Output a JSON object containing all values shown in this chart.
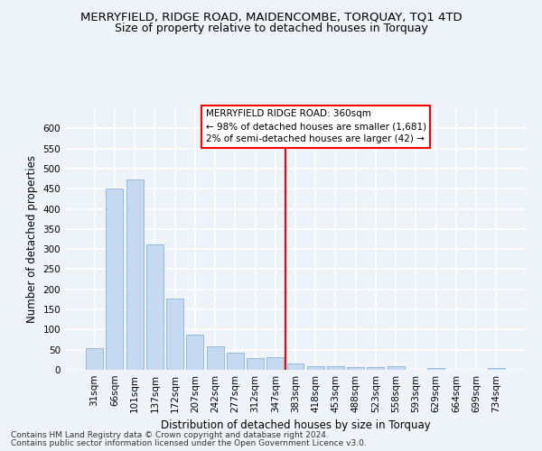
{
  "title": "MERRYFIELD, RIDGE ROAD, MAIDENCOMBE, TORQUAY, TQ1 4TD",
  "subtitle": "Size of property relative to detached houses in Torquay",
  "xlabel": "Distribution of detached houses by size in Torquay",
  "ylabel": "Number of detached properties",
  "footnote1": "Contains HM Land Registry data © Crown copyright and database right 2024.",
  "footnote2": "Contains public sector information licensed under the Open Government Licence v3.0.",
  "bin_labels": [
    "31sqm",
    "66sqm",
    "101sqm",
    "137sqm",
    "172sqm",
    "207sqm",
    "242sqm",
    "277sqm",
    "312sqm",
    "347sqm",
    "383sqm",
    "418sqm",
    "453sqm",
    "488sqm",
    "523sqm",
    "558sqm",
    "593sqm",
    "629sqm",
    "664sqm",
    "699sqm",
    "734sqm"
  ],
  "bar_values": [
    54,
    450,
    472,
    311,
    177,
    88,
    58,
    43,
    30,
    32,
    15,
    10,
    10,
    6,
    6,
    9,
    0,
    4,
    0,
    0,
    5
  ],
  "bar_color": "#c5d9f0",
  "bar_edge_color": "#8ab4d8",
  "vline_color": "red",
  "vline_pos": 9.5,
  "annotation_text": "MERRYFIELD RIDGE ROAD: 360sqm\n← 98% of detached houses are smaller (1,681)\n2% of semi-detached houses are larger (42) →",
  "ylim": [
    0,
    650
  ],
  "yticks": [
    0,
    50,
    100,
    150,
    200,
    250,
    300,
    350,
    400,
    450,
    500,
    550,
    600
  ],
  "background_color": "#eef2f9",
  "grid_color": "#ffffff",
  "title_fontsize": 9.5,
  "subtitle_fontsize": 9,
  "axis_label_fontsize": 8.5,
  "tick_fontsize": 7.5,
  "annotation_fontsize": 7.5,
  "footnote_fontsize": 6.5
}
